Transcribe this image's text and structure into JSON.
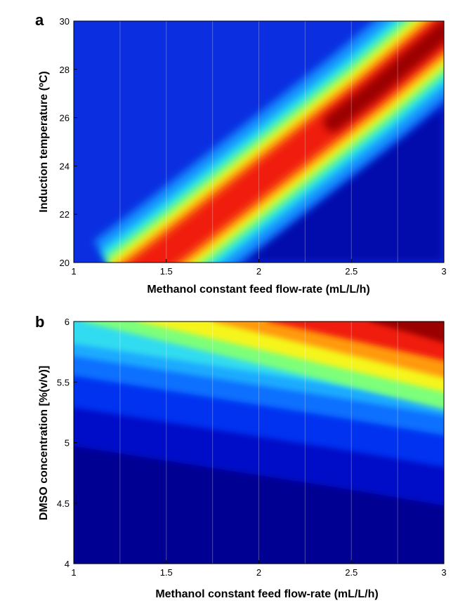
{
  "chart_data": [
    {
      "type": "heatmap",
      "panel_label": "a",
      "xlabel": "Methanol constant feed flow-rate (mL/L/h)",
      "ylabel": "Induction temperature (ºC)",
      "xlim": [
        1,
        3
      ],
      "ylim": [
        20,
        30
      ],
      "x_ticks": [
        1,
        1.5,
        2,
        2.5,
        3
      ],
      "x_tick_labels": [
        "1",
        "1.5",
        "2",
        "2.5",
        "3"
      ],
      "y_ticks": [
        20,
        22,
        24,
        26,
        28,
        30
      ],
      "y_tick_labels": [
        "20",
        "22",
        "24",
        "26",
        "28",
        "30"
      ],
      "colormap": "jet",
      "grid": true,
      "ridge": {
        "x": [
          1.43,
          1.6,
          1.8,
          2.0,
          2.2,
          2.4,
          2.6,
          2.8,
          3.0
        ],
        "y": [
          20,
          21,
          22.2,
          23.4,
          24.6,
          25.8,
          27,
          28.3,
          29.6
        ]
      },
      "ridge_peak_at": [
        3,
        29.5
      ]
    },
    {
      "type": "heatmap",
      "panel_label": "b",
      "xlabel": "Methanol constant feed flow-rate (mL/L/h)",
      "ylabel": "DMSO concentration [%(v/v)]",
      "xlim": [
        1,
        3
      ],
      "ylim": [
        4,
        6
      ],
      "x_ticks": [
        1,
        1.5,
        2,
        2.5,
        3
      ],
      "x_tick_labels": [
        "1",
        "1.5",
        "2",
        "2.5",
        "3"
      ],
      "y_ticks": [
        4,
        4.5,
        5,
        5.5,
        6
      ],
      "y_tick_labels": [
        "4",
        "4.5",
        "5",
        "5.5",
        "6"
      ],
      "colormap": "jet",
      "grid": true,
      "high_region_boundary": {
        "x": [
          1,
          1.5,
          2,
          2.5,
          3
        ],
        "y": [
          5.84,
          5.72,
          5.6,
          5.48,
          5.35
        ]
      },
      "max_at": [
        3,
        6
      ]
    }
  ]
}
